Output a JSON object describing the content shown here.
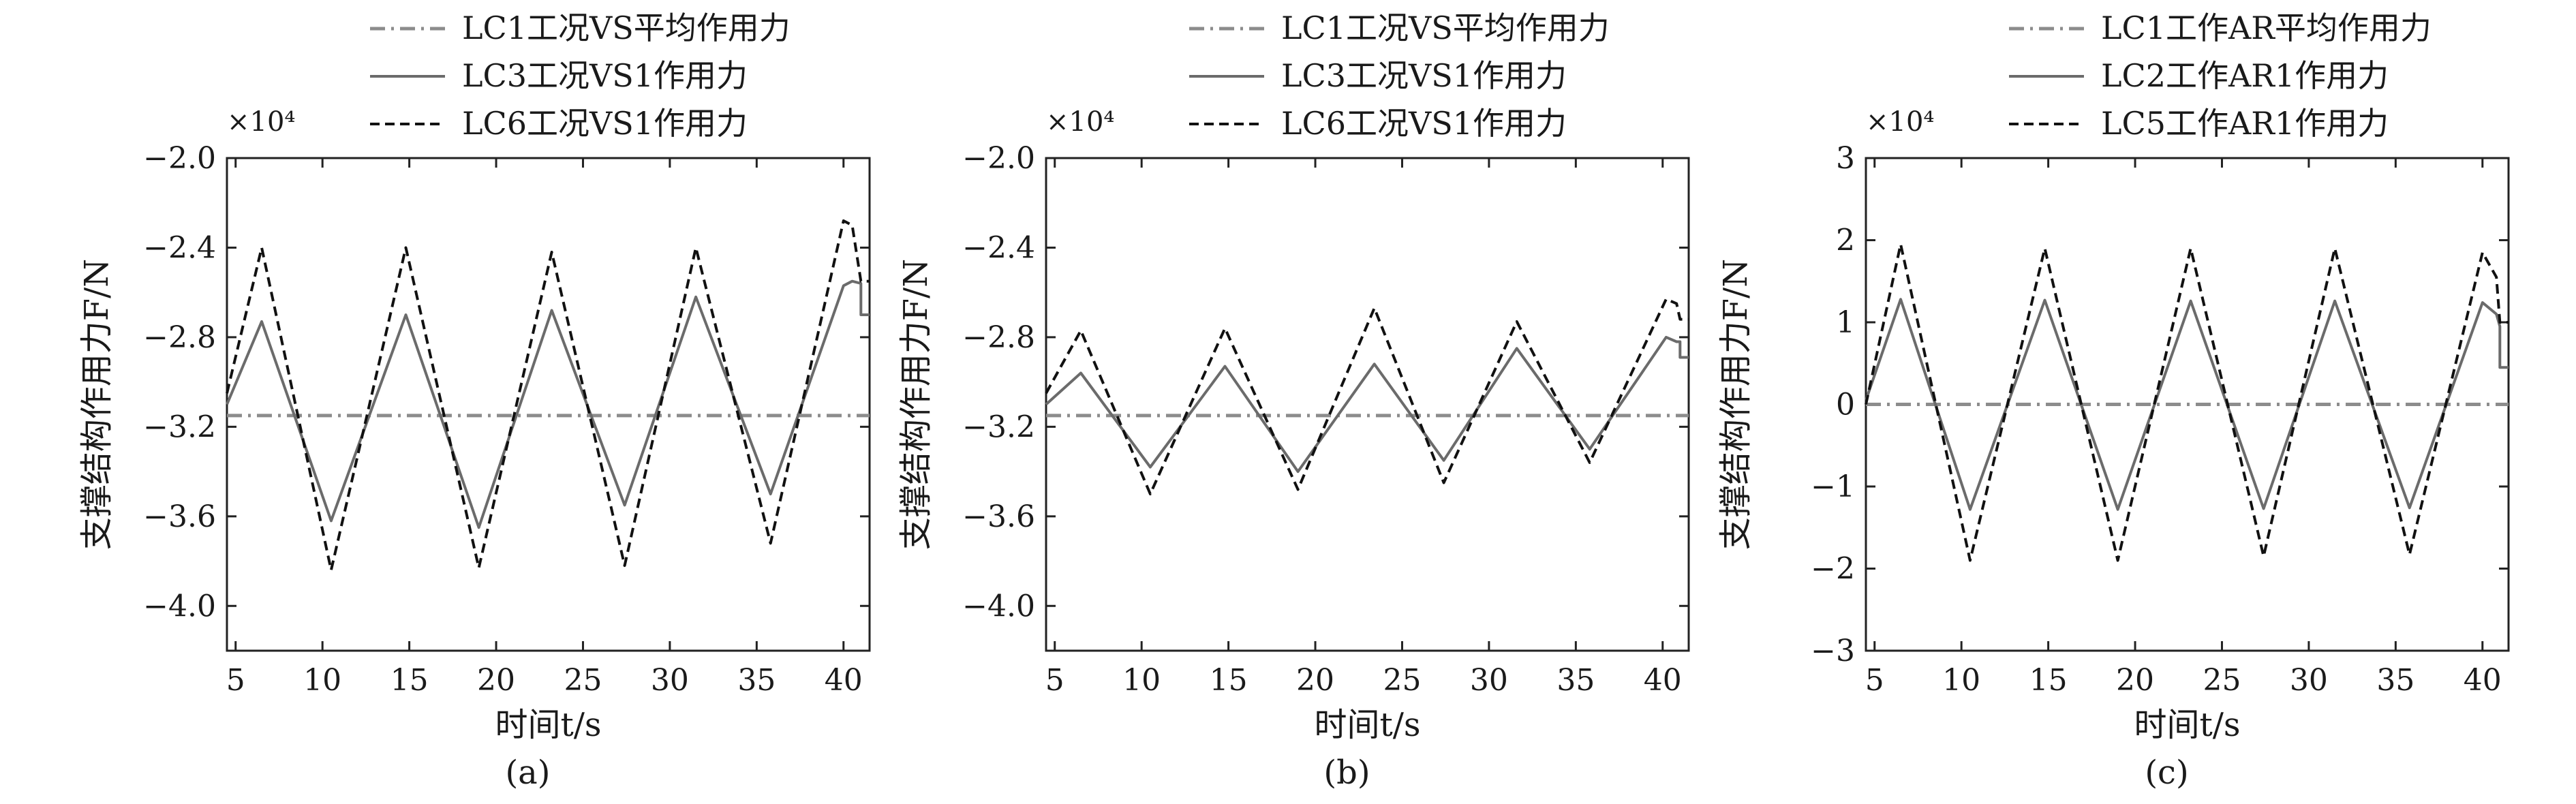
{
  "chart_data": [
    {
      "type": "line",
      "panel_label": "(a)",
      "xlabel": "时间t/s",
      "ylabel": "支撑结构作用力F/N",
      "y_multiplier": "×10⁴",
      "xlim": [
        4.5,
        41.5
      ],
      "ylim": [
        -4.2,
        -2.0
      ],
      "xticks": [
        5,
        10,
        15,
        20,
        25,
        30,
        35,
        40
      ],
      "yticks": [
        -2.0,
        -2.4,
        -2.8,
        -3.2,
        -3.6,
        -4.0
      ],
      "ytick_labels": [
        "−2.0",
        "−2.4",
        "−2.8",
        "−3.2",
        "−3.6",
        "−4.0"
      ],
      "legend_position": "top, above plot",
      "series": [
        {
          "name": "LC1工况VS平均作用力",
          "style": "dashdot",
          "color": "#8c8c8c",
          "x": [
            4.5,
            41.5
          ],
          "y": [
            -3.15,
            -3.15
          ]
        },
        {
          "name": "LC3工况VS1作用力",
          "style": "solid",
          "color": "#6b6b6b",
          "x": [
            4.5,
            6.5,
            10.5,
            14.8,
            19.0,
            23.2,
            27.4,
            31.5,
            35.8,
            40.0,
            40.5,
            41.0,
            41.0,
            41.5
          ],
          "y": [
            -3.1,
            -2.73,
            -3.62,
            -2.7,
            -3.65,
            -2.68,
            -3.55,
            -2.62,
            -3.5,
            -2.57,
            -2.55,
            -2.56,
            -2.7,
            -2.7
          ]
        },
        {
          "name": "LC6工况VS1作用力",
          "style": "dashed",
          "color": "#111111",
          "x": [
            4.5,
            6.5,
            10.5,
            14.8,
            19.0,
            23.2,
            27.4,
            31.5,
            35.8,
            40.0,
            40.5,
            41.0,
            41.0,
            41.5
          ],
          "y": [
            -3.05,
            -2.4,
            -3.84,
            -2.4,
            -3.83,
            -2.42,
            -3.82,
            -2.4,
            -3.72,
            -2.28,
            -2.3,
            -2.55,
            -2.55,
            -2.55
          ]
        }
      ]
    },
    {
      "type": "line",
      "panel_label": "(b)",
      "xlabel": "时间t/s",
      "ylabel": "支撑结构作用力F/N",
      "y_multiplier": "×10⁴",
      "xlim": [
        4.5,
        41.5
      ],
      "ylim": [
        -4.2,
        -2.0
      ],
      "xticks": [
        5,
        10,
        15,
        20,
        25,
        30,
        35,
        40
      ],
      "yticks": [
        -2.0,
        -2.4,
        -2.8,
        -3.2,
        -3.6,
        -4.0
      ],
      "ytick_labels": [
        "−2.0",
        "−2.4",
        "−2.8",
        "−3.2",
        "−3.6",
        "−4.0"
      ],
      "legend_position": "top, above plot",
      "series": [
        {
          "name": "LC1工况VS平均作用力",
          "style": "dashdot",
          "color": "#8c8c8c",
          "x": [
            4.5,
            41.5
          ],
          "y": [
            -3.15,
            -3.15
          ]
        },
        {
          "name": "LC3工况VS1作用力",
          "style": "solid",
          "color": "#6b6b6b",
          "x": [
            4.5,
            6.5,
            10.5,
            14.8,
            19.0,
            23.4,
            27.4,
            31.6,
            35.8,
            40.2,
            40.8,
            41.0,
            41.0,
            41.5
          ],
          "y": [
            -3.1,
            -2.96,
            -3.38,
            -2.93,
            -3.4,
            -2.92,
            -3.35,
            -2.85,
            -3.3,
            -2.8,
            -2.82,
            -2.82,
            -2.89,
            -2.89
          ]
        },
        {
          "name": "LC6工况VS1作用力",
          "style": "dashed",
          "color": "#111111",
          "x": [
            4.5,
            6.5,
            10.5,
            14.8,
            19.0,
            23.4,
            27.4,
            31.6,
            35.8,
            40.2,
            40.8,
            41.0,
            41.0,
            41.5
          ],
          "y": [
            -3.05,
            -2.77,
            -3.5,
            -2.76,
            -3.48,
            -2.67,
            -3.45,
            -2.73,
            -3.36,
            -2.63,
            -2.65,
            -2.72,
            -2.72,
            -2.72
          ]
        }
      ]
    },
    {
      "type": "line",
      "panel_label": "(c)",
      "xlabel": "时间t/s",
      "ylabel": "支撑结构作用力F/N",
      "y_multiplier": "×10⁴",
      "xlim": [
        4.5,
        41.5
      ],
      "ylim": [
        -3,
        3
      ],
      "xticks": [
        5,
        10,
        15,
        20,
        25,
        30,
        35,
        40
      ],
      "yticks": [
        3,
        2,
        1,
        0,
        -1,
        -2,
        -3
      ],
      "ytick_labels": [
        "3",
        "2",
        "1",
        "0",
        "−1",
        "−2",
        "−3"
      ],
      "legend_position": "top, above plot",
      "series": [
        {
          "name": "LC1工作AR平均作用力",
          "style": "dashdot",
          "color": "#8c8c8c",
          "x": [
            4.5,
            41.5
          ],
          "y": [
            0,
            0
          ]
        },
        {
          "name": "LC2工作AR1作用力",
          "style": "solid",
          "color": "#6b6b6b",
          "x": [
            4.5,
            6.5,
            10.5,
            14.8,
            19.0,
            23.2,
            27.4,
            31.5,
            35.8,
            40.0,
            40.8,
            41.0,
            41.0,
            41.5
          ],
          "y": [
            0.05,
            1.28,
            -1.28,
            1.27,
            -1.28,
            1.26,
            -1.27,
            1.26,
            -1.26,
            1.24,
            1.1,
            0.95,
            0.45,
            0.45
          ]
        },
        {
          "name": "LC5工作AR1作用力",
          "style": "dashed",
          "color": "#111111",
          "x": [
            4.5,
            6.5,
            10.5,
            14.8,
            19.0,
            23.2,
            27.4,
            31.5,
            35.8,
            40.0,
            40.8,
            41.0,
            41.0,
            41.5
          ],
          "y": [
            0.0,
            1.95,
            -1.9,
            1.9,
            -1.9,
            1.9,
            -1.85,
            1.9,
            -1.83,
            1.85,
            1.55,
            1.0,
            1.0,
            1.0
          ]
        }
      ]
    }
  ]
}
